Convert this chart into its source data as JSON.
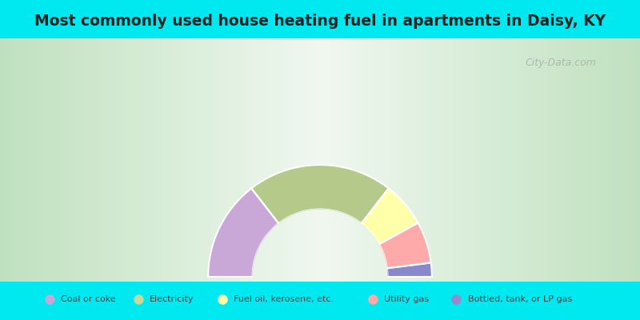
{
  "title": "Most commonly used house heating fuel in apartments in Daisy, KY",
  "title_fontsize": 13.5,
  "cyan_color": "#00e8f0",
  "segments_ordered": [
    {
      "label": "Bottled, tank, or LP gas",
      "value": 29,
      "color": "#c9a8d8"
    },
    {
      "label": "Electricity",
      "value": 42,
      "color": "#b5c98a"
    },
    {
      "label": "Fuel oil, kerosene, etc.",
      "value": 13,
      "color": "#ffffaa"
    },
    {
      "label": "Utility gas",
      "value": 12,
      "color": "#ffaaaa"
    },
    {
      "label": "Coal or coke",
      "value": 4,
      "color": "#8888cc"
    }
  ],
  "legend_items": [
    {
      "label": "Coal or coke",
      "color": "#c9a8d8"
    },
    {
      "label": "Electricity",
      "color": "#c8d898"
    },
    {
      "label": "Fuel oil, kerosene, etc.",
      "color": "#ffffaa"
    },
    {
      "label": "Utility gas",
      "color": "#ffaaaa"
    },
    {
      "label": "Bottled, tank, or LP gas",
      "color": "#9988cc"
    }
  ],
  "donut_inner_r": 0.28,
  "donut_outer_r": 0.46,
  "watermark": "City-Data.com"
}
